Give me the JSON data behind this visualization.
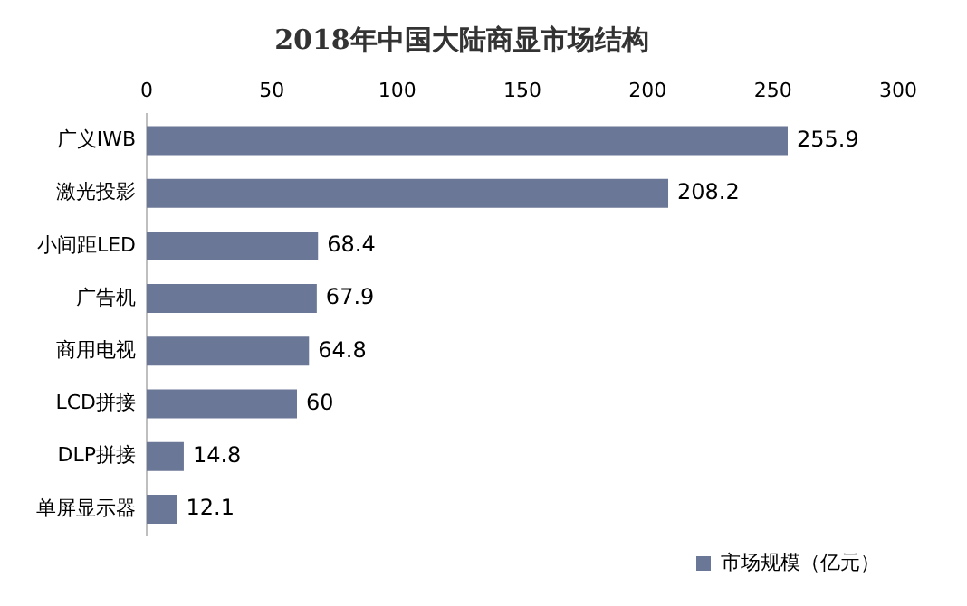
{
  "chart_data": {
    "type": "bar",
    "title": "2018年中国大陆商显市场结构",
    "orientation": "horizontal",
    "categories": [
      "广义IWB",
      "激光投影",
      "小间距LED",
      "广告机",
      "商用电视",
      "LCD拼接",
      "DLP拼接",
      "单屏显示器"
    ],
    "series": [
      {
        "name": "市场规模（亿元）",
        "color": "#6b7796",
        "values": [
          255.9,
          208.2,
          68.4,
          67.9,
          64.8,
          60,
          14.8,
          12.1
        ]
      }
    ],
    "xlim": [
      0,
      300
    ],
    "xticks": [
      0,
      50,
      100,
      150,
      200,
      250,
      300
    ],
    "grid": false,
    "legend": "bottom",
    "data_labels": true
  }
}
